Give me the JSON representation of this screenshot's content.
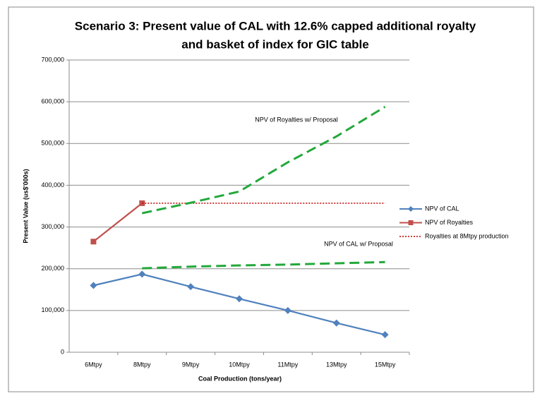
{
  "chart_data": {
    "type": "line",
    "title": [
      "Scenario 3: Present value of CAL with 12.6% capped additional royalty",
      "and basket of index for GIC table"
    ],
    "x_label": "Coal Production (tons/year)",
    "y_label": "Present Value (us$'000s)",
    "categories": [
      "6Mtpy",
      "8Mtpy",
      "9Mtpy",
      "10Mtpy",
      "11Mtpy",
      "13Mtpy",
      "15Mtpy"
    ],
    "ylim": [
      0,
      700000
    ],
    "yticks": [
      0,
      {
        "value": 100000,
        "label": "100,000"
      },
      {
        "value": 200000,
        "label": "200,000"
      },
      {
        "value": 300000,
        "label": "300,000"
      },
      {
        "value": 400000,
        "label": "400,000"
      },
      {
        "value": 500000,
        "label": "500,000"
      },
      {
        "value": 600000,
        "label": "600,000"
      },
      {
        "value": 700000,
        "label": "700,000"
      }
    ],
    "grid": true,
    "legend": "right",
    "series": [
      {
        "name": "NPV of CAL",
        "color": "#4f81bd",
        "marker": "diamond",
        "dash": "solid",
        "legend": true,
        "values": [
          160000,
          187000,
          157000,
          128000,
          100000,
          70000,
          42000
        ]
      },
      {
        "name": "NPV of Royalties",
        "color": "#c0504d",
        "marker": "square",
        "dash": "solid",
        "legend": true,
        "values": [
          265000,
          357000,
          null,
          null,
          null,
          null,
          null
        ]
      },
      {
        "name": "Royalties at 8Mtpy production",
        "color": "#c00000",
        "marker": "none",
        "dash": "dotted",
        "legend": true,
        "values": [
          null,
          357000,
          357000,
          357000,
          357000,
          357000,
          357000
        ]
      },
      {
        "name": "NPV of Royalties w/ Proposal",
        "color": "#22a83a",
        "marker": "none",
        "dash": "dashed",
        "legend": false,
        "values": [
          null,
          333000,
          358000,
          385000,
          455000,
          517000,
          588000
        ]
      },
      {
        "name": "NPV of CAL w/ Proposal",
        "color": "#22a83a",
        "marker": "none",
        "dash": "dashed",
        "legend": false,
        "values": [
          null,
          201000,
          205000,
          208000,
          210000,
          213000,
          216000
        ]
      }
    ]
  }
}
